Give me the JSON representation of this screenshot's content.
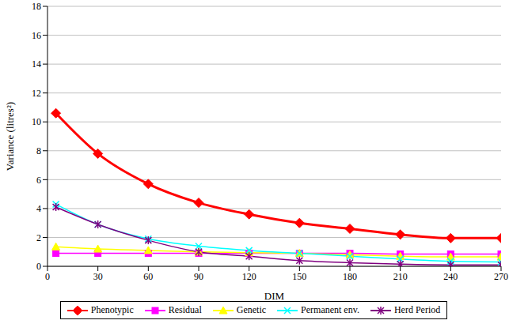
{
  "chart_data": {
    "type": "line",
    "x_label": "DIM",
    "y_label": "Variance (litres²)",
    "x": [
      5,
      30,
      60,
      90,
      120,
      150,
      180,
      210,
      240,
      270
    ],
    "xlim": [
      0,
      270
    ],
    "xticks": [
      0,
      30,
      60,
      90,
      120,
      150,
      180,
      210,
      240,
      270
    ],
    "ylim": [
      0,
      18
    ],
    "yticks": [
      0,
      2,
      4,
      6,
      8,
      10,
      12,
      14,
      16,
      18
    ],
    "grid": true,
    "legend": "bottom",
    "series": [
      {
        "name": "Phenotypic",
        "color": "#ff0000",
        "marker": "diamond",
        "values": [
          10.6,
          7.8,
          5.7,
          4.4,
          3.6,
          3.0,
          2.6,
          2.2,
          1.95,
          1.95
        ]
      },
      {
        "name": "Residual",
        "color": "#ff00ff",
        "marker": "square",
        "values": [
          0.9,
          0.9,
          0.9,
          0.9,
          0.9,
          0.9,
          0.9,
          0.85,
          0.85,
          0.85
        ]
      },
      {
        "name": "Genetic",
        "color": "#ffff00",
        "marker": "triangle",
        "values": [
          1.35,
          1.2,
          1.1,
          1.0,
          0.95,
          0.9,
          0.8,
          0.7,
          0.65,
          0.65
        ]
      },
      {
        "name": "Permanent env.",
        "color": "#00ffff",
        "marker": "x",
        "values": [
          4.3,
          2.9,
          1.9,
          1.4,
          1.1,
          0.9,
          0.7,
          0.5,
          0.35,
          0.3
        ]
      },
      {
        "name": "Herd Period",
        "color": "#800080",
        "marker": "star",
        "values": [
          4.1,
          2.9,
          1.8,
          1.0,
          0.7,
          0.4,
          0.25,
          0.15,
          0.1,
          0.1
        ]
      }
    ]
  }
}
